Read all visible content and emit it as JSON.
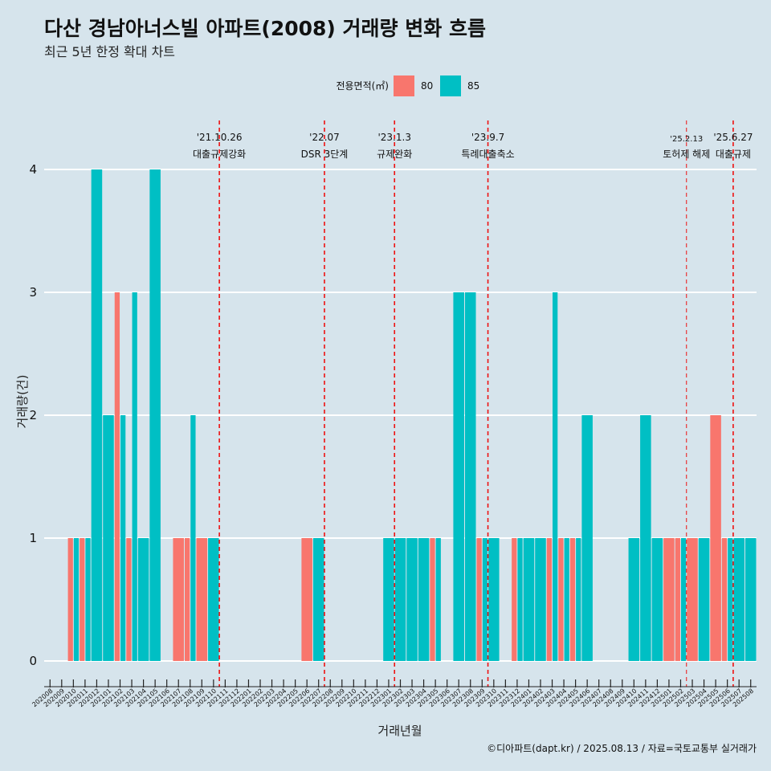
{
  "chart_data": {
    "type": "bar",
    "title": "다산 경남아너스빌 아파트(2008) 거래량 변화 흐름",
    "subtitle": "최근 5년 한정 확대 차트",
    "xlabel": "거래년월",
    "ylabel": "거래량(건)",
    "ylim": [
      0,
      4
    ],
    "yticks": [
      "0",
      "1",
      "2",
      "3",
      "4"
    ],
    "grid": true,
    "legend": {
      "title": "전용면적(㎡)",
      "position": "top",
      "items": [
        "80",
        "85"
      ]
    },
    "colors": {
      "80": "#f8766d",
      "85": "#00bfc4",
      "background": "#d6e4ec",
      "event_line": "#ee1111"
    },
    "categories": [
      "202008",
      "202009",
      "202010",
      "202011",
      "202012",
      "202101",
      "202102",
      "202103",
      "202104",
      "202105",
      "202106",
      "202107",
      "202108",
      "202109",
      "202110",
      "202111",
      "202112",
      "202201",
      "202202",
      "202203",
      "202204",
      "202205",
      "202206",
      "202207",
      "202208",
      "202209",
      "202210",
      "202211",
      "202212",
      "202301",
      "202302",
      "202303",
      "202304",
      "202305",
      "202306",
      "202307",
      "202308",
      "202309",
      "202310",
      "202311",
      "202312",
      "202401",
      "202402",
      "202403",
      "202404",
      "202405",
      "202406",
      "202407",
      "202408",
      "202409",
      "202410",
      "202411",
      "202412",
      "202501",
      "202502",
      "202503",
      "202504",
      "202505",
      "202506",
      "202507",
      "202508"
    ],
    "series": [
      {
        "name": "80",
        "values": [
          0,
          0,
          1,
          1,
          0,
          0,
          3,
          1,
          0,
          0,
          0,
          1,
          1,
          1,
          0,
          0,
          0,
          0,
          0,
          0,
          0,
          0,
          1,
          0,
          0,
          0,
          0,
          0,
          0,
          0,
          0,
          0,
          0,
          1,
          0,
          0,
          0,
          1,
          0,
          0,
          1,
          0,
          0,
          1,
          1,
          1,
          0,
          0,
          0,
          0,
          0,
          0,
          0,
          1,
          1,
          1,
          0,
          2,
          1,
          0,
          0
        ]
      },
      {
        "name": "85",
        "values": [
          0,
          0,
          1,
          1,
          4,
          2,
          2,
          3,
          1,
          4,
          0,
          0,
          2,
          0,
          1,
          0,
          0,
          0,
          0,
          0,
          0,
          0,
          0,
          1,
          0,
          0,
          0,
          0,
          0,
          1,
          1,
          1,
          1,
          1,
          0,
          3,
          3,
          1,
          1,
          0,
          1,
          1,
          1,
          3,
          1,
          1,
          2,
          0,
          0,
          0,
          1,
          2,
          1,
          0,
          1,
          0,
          1,
          0,
          1,
          1,
          1
        ]
      }
    ],
    "events": [
      {
        "date": "'21.10.26",
        "label": "대출규제강화",
        "after": "202110",
        "small": false
      },
      {
        "date": "'22.07",
        "label": "DSR 3단계",
        "after": "202207",
        "small": false
      },
      {
        "date": "'23.1.3",
        "label": "규제완화",
        "after": "202301",
        "small": false
      },
      {
        "date": "'23.9.7",
        "label": "특례대출축소",
        "after": "202309",
        "small": false
      },
      {
        "date": "'25.2.13",
        "label": "토허제 해제",
        "after": "202502",
        "small": true
      },
      {
        "date": "'25.6.27",
        "label": "대출규제",
        "after": "202506",
        "small": false
      }
    ],
    "caption": "©디아파트(dapt.kr) / 2025.08.13 / 자료=국토교통부 실거래가"
  }
}
